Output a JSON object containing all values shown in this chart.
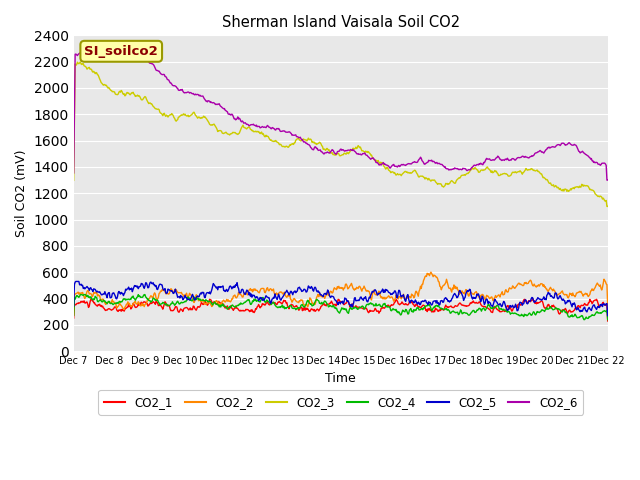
{
  "title": "Sherman Island Vaisala Soil CO2",
  "xlabel": "Time",
  "ylabel": "Soil CO2 (mV)",
  "ylim": [
    0,
    2400
  ],
  "yticks": [
    0,
    200,
    400,
    600,
    800,
    1000,
    1200,
    1400,
    1600,
    1800,
    2000,
    2200,
    2400
  ],
  "bg_color": "#e8e8e8",
  "fig_color": "#ffffff",
  "x_tick_labels": [
    "Dec 7",
    "Dec 8",
    "Dec 9",
    "Dec 10",
    "Dec 11",
    "Dec 12",
    "Dec 13",
    "Dec 14",
    "Dec 15",
    "Dec 16",
    "Dec 17",
    "Dec 18",
    "Dec 19",
    "Dec 20",
    "Dec 21",
    "Dec 22"
  ],
  "legend_entries": [
    "CO2_1",
    "CO2_2",
    "CO2_3",
    "CO2_4",
    "CO2_5",
    "CO2_6"
  ],
  "legend_colors": [
    "#ff0000",
    "#ff8800",
    "#cccc00",
    "#00bb00",
    "#0000cc",
    "#aa00aa"
  ],
  "series_linewidth": 1.0,
  "inset_label": "SI_soilco2",
  "inset_label_color": "#8b0000",
  "inset_box_color": "#ffffaa",
  "inset_box_edge": "#999900",
  "n_points": 720
}
